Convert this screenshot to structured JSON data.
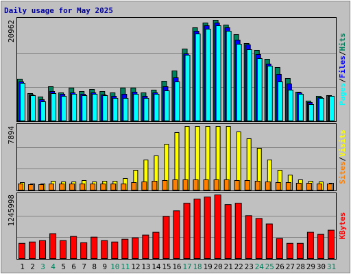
{
  "chart_data": [
    {
      "type": "bar",
      "title": "Daily usage for May 2025",
      "ylim": [
        0,
        20962
      ],
      "yticks": [
        20962
      ],
      "legend_separator": "/",
      "series": [
        {
          "name": "Hits",
          "color": "#00805c",
          "values": [
            8699,
            5704,
            4991,
            7130,
            5847,
            6845,
            6132,
            6560,
            6132,
            5847,
            6845,
            6845,
            5847,
            6417,
            8271,
            10410,
            14973,
            19394,
            20392,
            20962,
            19964,
            17968,
            16114,
            14688,
            12834,
            11123,
            8841,
            5989,
            4135,
            5134,
            5276
          ]
        },
        {
          "name": "Files",
          "color": "#0000ff",
          "values": [
            8128,
            5419,
            4421,
            6132,
            5561,
            5847,
            5561,
            5847,
            5419,
            5134,
            5561,
            5989,
            5134,
            5847,
            7130,
            8984,
            13975,
            18681,
            19821,
            20392,
            19394,
            16827,
            15829,
            13832,
            11836,
            9697,
            7700,
            5847,
            3850,
            4848,
            5134
          ]
        },
        {
          "name": "Pages",
          "color": "#00ffff",
          "values": [
            7843,
            5276,
            3993,
            5704,
            5134,
            5561,
            5276,
            5561,
            5276,
            4706,
            4706,
            5561,
            4706,
            5561,
            6274,
            8128,
            13690,
            18110,
            19108,
            19821,
            18681,
            15971,
            14830,
            12977,
            11408,
            8128,
            6417,
            5561,
            3422,
            4706,
            5134
          ]
        }
      ]
    },
    {
      "type": "bar",
      "ylim": [
        0,
        7894
      ],
      "yticks": [
        7894
      ],
      "legend_separator": "/",
      "series": [
        {
          "name": "Visits",
          "color": "#ffff00",
          "values": [
            934,
            764,
            764,
            1104,
            1019,
            1019,
            1189,
            1019,
            1104,
            1104,
            1443,
            2462,
            3736,
            4245,
            5688,
            7132,
            7894,
            7894,
            7894,
            7894,
            7894,
            7217,
            6368,
            5179,
            3736,
            2462,
            1868,
            1274,
            1104,
            1019,
            849
          ]
        },
        {
          "name": "Sites",
          "color": "#ff8000",
          "values": [
            764,
            679,
            679,
            764,
            764,
            764,
            764,
            764,
            764,
            764,
            764,
            934,
            1019,
            1104,
            1189,
            1274,
            1274,
            1274,
            1274,
            1274,
            1274,
            1189,
            1189,
            1104,
            1019,
            934,
            934,
            849,
            849,
            764,
            764
          ]
        }
      ]
    },
    {
      "type": "bar",
      "ylim": [
        0,
        1245998
      ],
      "yticks": [
        1245998
      ],
      "categories": [
        "1",
        "2",
        "3",
        "4",
        "5",
        "6",
        "7",
        "8",
        "9",
        "10",
        "11",
        "12",
        "13",
        "14",
        "15",
        "16",
        "17",
        "18",
        "19",
        "20",
        "21",
        "22",
        "23",
        "24",
        "25",
        "26",
        "27",
        "28",
        "29",
        "30",
        "31"
      ],
      "category_colors": [
        "#000000",
        "#000000",
        "#00805c",
        "#00805c",
        "#000000",
        "#000000",
        "#000000",
        "#000000",
        "#000000",
        "#00805c",
        "#00805c",
        "#000000",
        "#000000",
        "#000000",
        "#000000",
        "#000000",
        "#00805c",
        "#00805c",
        "#000000",
        "#000000",
        "#000000",
        "#000000",
        "#000000",
        "#00805c",
        "#00805c",
        "#000000",
        "#000000",
        "#000000",
        "#000000",
        "#000000",
        "#00805c"
      ],
      "series": [
        {
          "name": "KBytes",
          "color": "#ff0000",
          "values": [
            297954,
            325042,
            352129,
            487563,
            352129,
            433388,
            311500,
            419846,
            352129,
            325042,
            379217,
            406304,
            460475,
            514650,
            826142,
            934485,
            1083480,
            1164710,
            1205340,
            1245998,
            1056370,
            1083480,
            839667,
            785496,
            677175,
            392748,
            297954,
            297954,
            514650,
            474008,
            555272
          ]
        }
      ]
    }
  ]
}
